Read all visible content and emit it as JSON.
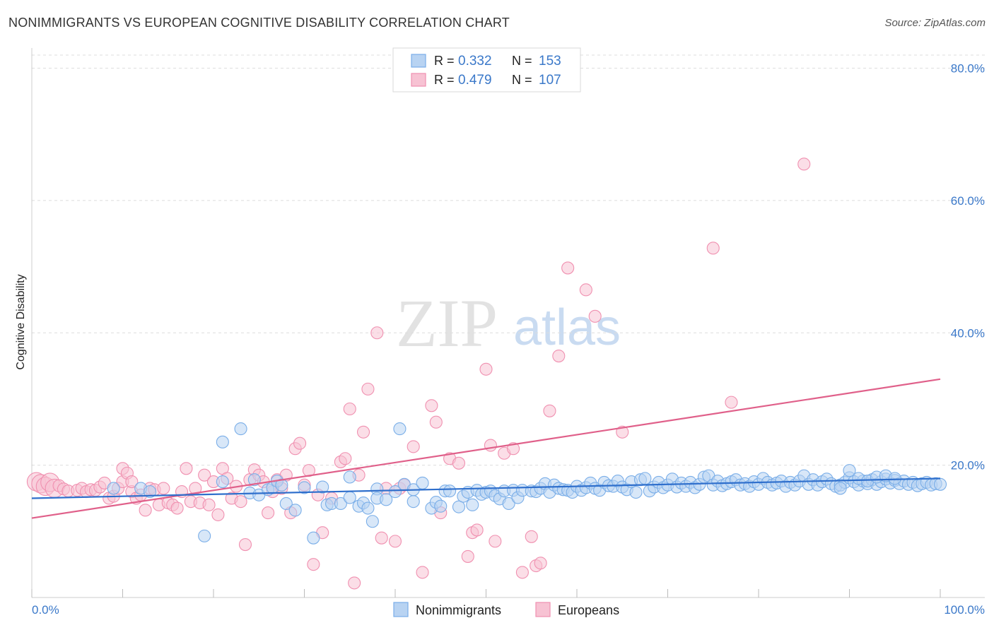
{
  "title": "NONIMMIGRANTS VS EUROPEAN COGNITIVE DISABILITY CORRELATION CHART",
  "source": "Source: ZipAtlas.com",
  "watermark": {
    "zip": "ZIP",
    "atlas": "atlas"
  },
  "colors": {
    "blue": "#7aaee8",
    "blue_fill": "#b8d3f2",
    "blue_line": "#2f6fcc",
    "pink": "#f090b0",
    "pink_fill": "#f7c2d3",
    "pink_line": "#e0608a",
    "axis_text": "#3a78c9",
    "grid": "#dddddd"
  },
  "legend": {
    "rows": [
      {
        "r_label": "R =",
        "r_value": "0.332",
        "n_label": "N =",
        "n_value": "153"
      },
      {
        "r_label": "R =",
        "r_value": "0.479",
        "n_label": "N =",
        "n_value": "107"
      }
    ]
  },
  "chart_data": {
    "type": "scatter",
    "title": "NONIMMIGRANTS VS EUROPEAN COGNITIVE DISABILITY CORRELATION CHART",
    "xlabel": "",
    "ylabel": "Cognitive Disability",
    "xlim": [
      0,
      100
    ],
    "ylim": [
      0,
      84
    ],
    "x_tick_labels": [
      "0.0%",
      "100.0%"
    ],
    "y_ticks": [
      20,
      40,
      60,
      80
    ],
    "y_tick_labels": [
      "20.0%",
      "40.0%",
      "60.0%",
      "80.0%"
    ],
    "grid": true,
    "legend_position": "bottom",
    "series": [
      {
        "name": "Nonimmigrants",
        "r": 0.332,
        "n": 153,
        "trend": {
          "x": [
            0,
            100
          ],
          "y": [
            15.0,
            18.0
          ]
        },
        "points": [
          [
            9,
            16.5
          ],
          [
            12,
            16.5
          ],
          [
            13,
            16
          ],
          [
            19,
            9.3
          ],
          [
            21,
            23.5
          ],
          [
            21,
            17.5
          ],
          [
            23,
            25.5
          ],
          [
            24,
            15.8
          ],
          [
            24.5,
            17.8
          ],
          [
            25,
            15.5
          ],
          [
            26,
            16.3
          ],
          [
            26.5,
            16.6
          ],
          [
            27,
            17.6
          ],
          [
            27.5,
            17.0
          ],
          [
            28,
            14.2
          ],
          [
            29,
            13.2
          ],
          [
            30,
            16.6
          ],
          [
            31,
            9.0
          ],
          [
            32,
            16.7
          ],
          [
            32.5,
            14.0
          ],
          [
            33,
            14.2
          ],
          [
            34,
            14.2
          ],
          [
            35,
            15.1
          ],
          [
            35,
            18.2
          ],
          [
            36,
            13.8
          ],
          [
            36.5,
            14.3
          ],
          [
            37,
            13.5
          ],
          [
            37.5,
            11.5
          ],
          [
            38,
            16.4
          ],
          [
            38,
            15.0
          ],
          [
            39,
            14.8
          ],
          [
            40,
            16.0
          ],
          [
            40.5,
            25.5
          ],
          [
            41,
            17.1
          ],
          [
            42,
            14.5
          ],
          [
            42,
            16.3
          ],
          [
            43,
            17.3
          ],
          [
            44,
            13.5
          ],
          [
            44.5,
            14.4
          ],
          [
            45,
            13.8
          ],
          [
            45.5,
            16.1
          ],
          [
            46,
            16.1
          ],
          [
            47,
            13.7
          ],
          [
            47.5,
            15.3
          ],
          [
            48,
            15.9
          ],
          [
            48.5,
            14.0
          ],
          [
            49,
            16.2
          ],
          [
            49.5,
            15.6
          ],
          [
            50,
            15.9
          ],
          [
            50.5,
            16.1
          ],
          [
            51,
            15.4
          ],
          [
            51.5,
            14.9
          ],
          [
            52,
            16.1
          ],
          [
            52.5,
            14.2
          ],
          [
            53,
            16.2
          ],
          [
            53.5,
            15.1
          ],
          [
            54,
            16.2
          ],
          [
            55,
            16.1
          ],
          [
            55.5,
            16.0
          ],
          [
            56,
            16.5
          ],
          [
            56.5,
            17.2
          ],
          [
            57,
            15.9
          ],
          [
            57.5,
            17.0
          ],
          [
            58,
            16.5
          ],
          [
            58.5,
            16.3
          ],
          [
            59,
            16.2
          ],
          [
            59.5,
            15.9
          ],
          [
            60,
            16.8
          ],
          [
            60.5,
            16.2
          ],
          [
            61,
            16.6
          ],
          [
            61.5,
            17.3
          ],
          [
            62,
            16.5
          ],
          [
            62.5,
            16.2
          ],
          [
            63,
            17.4
          ],
          [
            63.5,
            16.9
          ],
          [
            64,
            16.8
          ],
          [
            64.5,
            17.6
          ],
          [
            65,
            16.7
          ],
          [
            65.5,
            16.3
          ],
          [
            66,
            17.5
          ],
          [
            66.5,
            15.9
          ],
          [
            67,
            17.8
          ],
          [
            67.5,
            18.0
          ],
          [
            68,
            16.1
          ],
          [
            68.5,
            16.7
          ],
          [
            69,
            17.4
          ],
          [
            69.5,
            16.6
          ],
          [
            70,
            17.0
          ],
          [
            70.5,
            17.9
          ],
          [
            71,
            16.7
          ],
          [
            71.5,
            17.3
          ],
          [
            72,
            16.8
          ],
          [
            72.5,
            17.4
          ],
          [
            73,
            16.6
          ],
          [
            73.5,
            17.1
          ],
          [
            74,
            18.2
          ],
          [
            74.5,
            18.4
          ],
          [
            75,
            17.0
          ],
          [
            75.5,
            17.6
          ],
          [
            76,
            16.9
          ],
          [
            76.5,
            17.2
          ],
          [
            77,
            17.5
          ],
          [
            77.5,
            17.8
          ],
          [
            78,
            17.0
          ],
          [
            78.5,
            17.2
          ],
          [
            79,
            16.8
          ],
          [
            79.5,
            17.5
          ],
          [
            80,
            17.1
          ],
          [
            80.5,
            18.0
          ],
          [
            81,
            17.4
          ],
          [
            81.5,
            17.0
          ],
          [
            82,
            17.3
          ],
          [
            82.5,
            17.6
          ],
          [
            83,
            16.8
          ],
          [
            83.5,
            17.4
          ],
          [
            84,
            17.0
          ],
          [
            84.5,
            17.6
          ],
          [
            85,
            18.4
          ],
          [
            85.5,
            17.1
          ],
          [
            86,
            17.8
          ],
          [
            86.5,
            17.0
          ],
          [
            87,
            17.5
          ],
          [
            87.5,
            17.9
          ],
          [
            88,
            17.2
          ],
          [
            88.5,
            16.8
          ],
          [
            89,
            17.0
          ],
          [
            89.5,
            17.4
          ],
          [
            90,
            18.1
          ],
          [
            90.5,
            17.5
          ],
          [
            91,
            17.0
          ],
          [
            91.5,
            17.6
          ],
          [
            92,
            17.2
          ],
          [
            92.5,
            17.8
          ],
          [
            93,
            17.1
          ],
          [
            93.5,
            17.5
          ],
          [
            94,
            17.9
          ],
          [
            94.5,
            17.3
          ],
          [
            95,
            17.7
          ],
          [
            95.5,
            17.2
          ],
          [
            96,
            17.6
          ],
          [
            96.5,
            17.1
          ],
          [
            97,
            17.4
          ],
          [
            97.5,
            16.9
          ],
          [
            98,
            17.2
          ],
          [
            98.5,
            17.4
          ],
          [
            99,
            17.0
          ],
          [
            99.5,
            17.2
          ],
          [
            100,
            17.1
          ],
          [
            89,
            16.5
          ],
          [
            90,
            19.2
          ],
          [
            91,
            18.0
          ],
          [
            92,
            17.6
          ],
          [
            93,
            18.2
          ],
          [
            94,
            18.4
          ],
          [
            95,
            18.0
          ]
        ]
      },
      {
        "name": "Europeans",
        "r": 0.479,
        "n": 107,
        "trend": {
          "x": [
            0,
            100
          ],
          "y": [
            12.0,
            33.0
          ]
        },
        "points": [
          [
            0.5,
            17.5
          ],
          [
            1,
            17.2
          ],
          [
            1.5,
            16.8
          ],
          [
            2,
            17.4
          ],
          [
            2.5,
            16.5
          ],
          [
            3,
            16.9
          ],
          [
            3.5,
            16.4
          ],
          [
            4,
            16.1
          ],
          [
            5,
            16.2
          ],
          [
            5.5,
            16.5
          ],
          [
            6,
            16.0
          ],
          [
            6.5,
            16.3
          ],
          [
            7,
            16.2
          ],
          [
            7.5,
            16.7
          ],
          [
            8,
            17.3
          ],
          [
            8.5,
            15.0
          ],
          [
            9,
            15.3
          ],
          [
            9.5,
            16.5
          ],
          [
            10,
            17.5
          ],
          [
            10,
            19.5
          ],
          [
            10.5,
            18.8
          ],
          [
            11,
            16.0
          ],
          [
            11,
            17.5
          ],
          [
            11.5,
            15.0
          ],
          [
            12,
            15.5
          ],
          [
            12.5,
            13.2
          ],
          [
            13,
            16.5
          ],
          [
            13.5,
            16.3
          ],
          [
            14,
            14.0
          ],
          [
            14.5,
            16.5
          ],
          [
            15,
            14.3
          ],
          [
            15.5,
            14.0
          ],
          [
            16,
            13.5
          ],
          [
            16.5,
            16.0
          ],
          [
            17,
            19.5
          ],
          [
            17.5,
            14.5
          ],
          [
            18,
            16.5
          ],
          [
            18.5,
            14.3
          ],
          [
            19,
            18.5
          ],
          [
            19.5,
            14.0
          ],
          [
            20,
            17.5
          ],
          [
            20.5,
            12.5
          ],
          [
            21,
            19.5
          ],
          [
            21.5,
            18.0
          ],
          [
            22,
            15.0
          ],
          [
            22.5,
            16.8
          ],
          [
            23,
            14.5
          ],
          [
            23.5,
            8.0
          ],
          [
            24,
            17.8
          ],
          [
            24.5,
            19.3
          ],
          [
            25,
            18.5
          ],
          [
            25.5,
            17.5
          ],
          [
            26,
            12.8
          ],
          [
            26.5,
            16.0
          ],
          [
            27,
            17.8
          ],
          [
            27.5,
            16.5
          ],
          [
            28,
            18.5
          ],
          [
            28.5,
            12.8
          ],
          [
            29,
            22.5
          ],
          [
            29.5,
            23.3
          ],
          [
            30,
            17.0
          ],
          [
            30.5,
            19.2
          ],
          [
            31,
            5.0
          ],
          [
            31.5,
            15.5
          ],
          [
            32,
            9.8
          ],
          [
            33,
            15.0
          ],
          [
            34,
            20.5
          ],
          [
            34.5,
            21.0
          ],
          [
            35,
            28.5
          ],
          [
            35.5,
            2.2
          ],
          [
            36,
            18.5
          ],
          [
            36.5,
            25.0
          ],
          [
            37,
            31.5
          ],
          [
            38,
            40.0
          ],
          [
            38.5,
            9.0
          ],
          [
            39,
            16.5
          ],
          [
            40,
            8.5
          ],
          [
            40.5,
            16.5
          ],
          [
            41,
            17.0
          ],
          [
            42,
            22.8
          ],
          [
            43,
            3.8
          ],
          [
            44,
            29.0
          ],
          [
            44.5,
            26.5
          ],
          [
            45,
            12.8
          ],
          [
            46,
            21.0
          ],
          [
            47,
            20.3
          ],
          [
            48,
            6.2
          ],
          [
            48.5,
            9.8
          ],
          [
            49,
            10.2
          ],
          [
            50,
            34.5
          ],
          [
            50.5,
            23.0
          ],
          [
            51,
            8.5
          ],
          [
            52,
            21.8
          ],
          [
            53,
            22.5
          ],
          [
            54,
            3.8
          ],
          [
            55,
            9.2
          ],
          [
            55.5,
            4.8
          ],
          [
            56,
            5.2
          ],
          [
            57,
            28.2
          ],
          [
            58,
            36.5
          ],
          [
            59,
            49.8
          ],
          [
            61,
            46.5
          ],
          [
            62,
            42.5
          ],
          [
            65,
            25.0
          ],
          [
            75,
            52.8
          ],
          [
            77,
            29.5
          ],
          [
            85,
            65.5
          ]
        ]
      }
    ]
  }
}
